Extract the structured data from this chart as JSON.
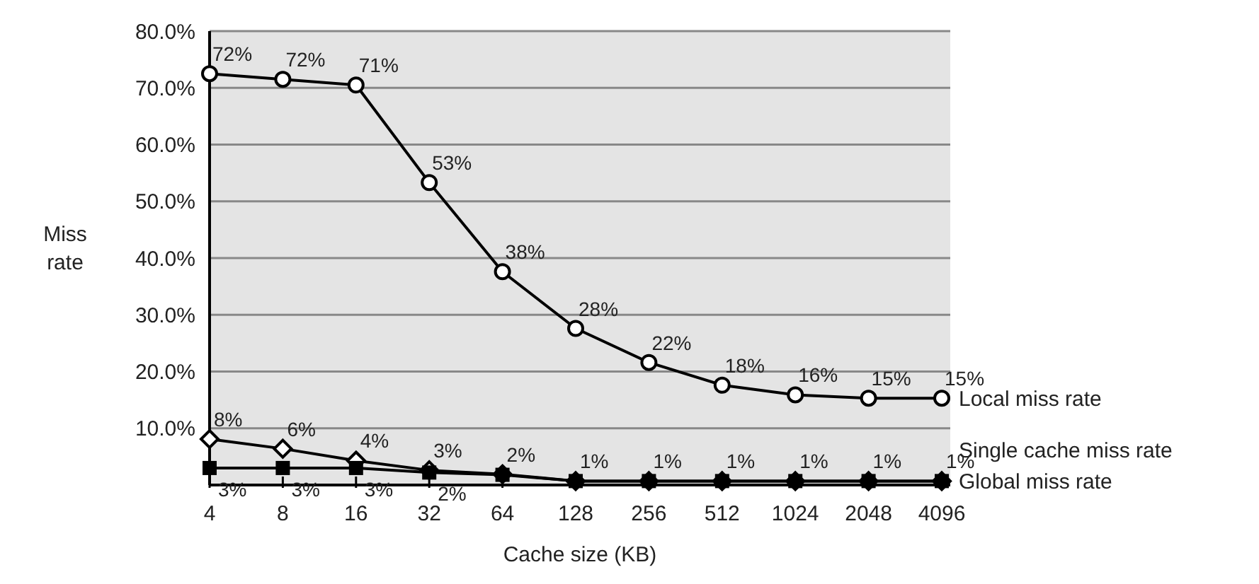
{
  "chart_data": {
    "type": "line",
    "xlabel": "Cache size (KB)",
    "ylabel": "Miss rate",
    "categories": [
      "4",
      "8",
      "16",
      "32",
      "64",
      "128",
      "256",
      "512",
      "1024",
      "2048",
      "4096"
    ],
    "ylim": [
      0,
      80
    ],
    "yticks": [
      {
        "value": 0,
        "label": null
      },
      {
        "value": 10,
        "label": "10.0%"
      },
      {
        "value": 20,
        "label": "20.0%"
      },
      {
        "value": 30,
        "label": "30.0%"
      },
      {
        "value": 40,
        "label": "40.0%"
      },
      {
        "value": 50,
        "label": "50.0%"
      },
      {
        "value": 60,
        "label": "60.0%"
      },
      {
        "value": 70,
        "label": "70.0%"
      },
      {
        "value": 80,
        "label": "80.0%"
      }
    ],
    "grid": "y",
    "legend": false,
    "line_style": "solid",
    "series": [
      {
        "name": "Local miss rate",
        "color": "#000000",
        "marker": "circle",
        "values": [
          72.5,
          71.5,
          70.5,
          53.3,
          37.6,
          27.6,
          21.6,
          17.6,
          15.9,
          15.3,
          15.3
        ],
        "value_labels": [
          "72%",
          "72%",
          "71%",
          "53%",
          "38%",
          "28%",
          "22%",
          "18%",
          "16%",
          "15%",
          "15%"
        ]
      },
      {
        "name": "Single cache miss rate",
        "color": "#000000",
        "marker": "diamond",
        "values": [
          8.1,
          6.4,
          4.3,
          2.6,
          1.9,
          0.7,
          0.7,
          0.7,
          0.7,
          0.7,
          0.7
        ],
        "value_labels": [
          "8%",
          "6%",
          "4%",
          "3%",
          "2%",
          "1%",
          "1%",
          "1%",
          "1%",
          "1%",
          "1%"
        ]
      },
      {
        "name": "Global miss rate",
        "color": "#000000",
        "marker": "square",
        "values": [
          3.0,
          3.0,
          3.0,
          2.2,
          1.8,
          0.7,
          0.7,
          0.7,
          0.7,
          0.7,
          0.7
        ],
        "value_labels": [
          "3%",
          "3%",
          "3%",
          "2%",
          null,
          null,
          null,
          null,
          null,
          null,
          null
        ]
      }
    ]
  }
}
